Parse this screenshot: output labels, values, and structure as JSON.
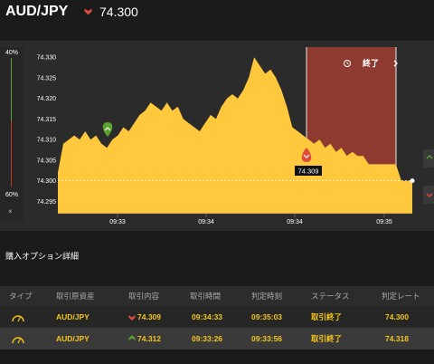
{
  "header": {
    "pair": "AUD/JPY",
    "price": "74.300"
  },
  "left_bar": {
    "top_pct": "40%",
    "bottom_pct": "60%",
    "close": "×"
  },
  "chart": {
    "y_ticks": [
      "74.330",
      "74.325",
      "74.320",
      "74.315",
      "74.310",
      "74.305",
      "74.300",
      "74.295"
    ],
    "x_ticks": [
      "09:33",
      "09:34",
      "09:34",
      "09:35"
    ],
    "end_label": "終了",
    "marker_price": "74.309",
    "colors": {
      "fill": "#ffc83d",
      "zone": "#8e3a30",
      "up": "#5aa02c",
      "down": "#e04b3a"
    }
  },
  "chart_data": {
    "type": "area",
    "ylim": [
      74.292,
      74.334
    ],
    "current_price": 74.3,
    "series": [
      {
        "values": [
          74.302,
          74.309,
          74.31,
          74.311,
          74.31,
          74.312,
          74.31,
          74.311,
          74.309,
          74.308,
          74.31,
          74.311,
          74.313,
          74.312,
          74.314,
          74.316,
          74.317,
          74.319,
          74.318,
          74.317,
          74.319,
          74.317,
          74.318,
          74.315,
          74.314,
          74.313,
          74.312,
          74.314,
          74.316,
          74.315,
          74.318,
          74.32,
          74.321,
          74.32,
          74.322,
          74.325,
          74.33,
          74.328,
          74.326,
          74.327,
          74.325,
          74.322,
          74.318,
          74.313,
          74.312,
          74.311,
          74.31,
          74.309,
          74.31,
          74.308,
          74.309,
          74.307,
          74.308,
          74.306,
          74.307,
          74.306,
          74.306,
          74.304,
          74.304,
          74.304,
          74.304,
          74.304,
          74.304,
          74.3,
          74.3,
          74.3
        ]
      }
    ]
  },
  "section": {
    "title": "購入オプション詳細"
  },
  "table": {
    "headers": [
      "タイプ",
      "取引原資産",
      "取引内容",
      "取引時間",
      "判定時刻",
      "ステータス",
      "判定レート"
    ],
    "rows": [
      {
        "asset": "AUD/JPY",
        "content": "74.309",
        "direction": "down",
        "time": "09:34:33",
        "judge": "09:35:03",
        "status": "取引終了",
        "rate": "74.300"
      },
      {
        "asset": "AUD/JPY",
        "content": "74.312",
        "direction": "up",
        "time": "09:33:26",
        "judge": "09:33:56",
        "status": "取引終了",
        "rate": "74.318"
      }
    ]
  }
}
